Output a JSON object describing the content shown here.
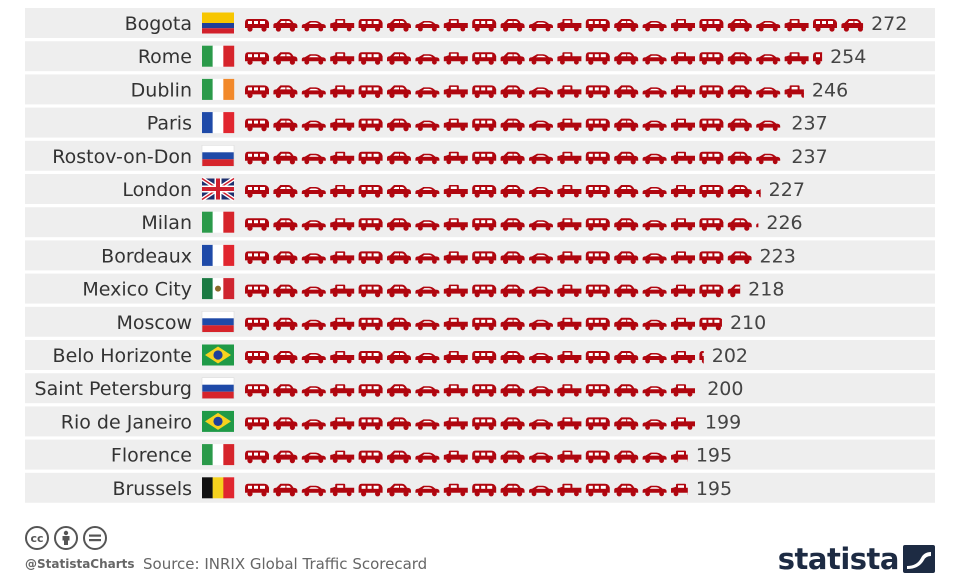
{
  "chart_data": {
    "type": "bar",
    "categories": [
      "Bogota",
      "Rome",
      "Dublin",
      "Paris",
      "Rostov-on-Don",
      "London",
      "Milan",
      "Bordeaux",
      "Mexico City",
      "Moscow",
      "Belo Horizonte",
      "Saint Petersburg",
      "Rio de Janeiro",
      "Florence",
      "Brussels"
    ],
    "values": [
      272,
      254,
      246,
      237,
      237,
      227,
      226,
      223,
      218,
      210,
      202,
      200,
      199,
      195,
      195
    ],
    "flags": [
      "colombia",
      "italy",
      "ireland",
      "france",
      "russia",
      "uk",
      "italy",
      "france",
      "mexico",
      "russia",
      "brazil",
      "russia",
      "brazil",
      "italy",
      "belgium"
    ],
    "mark": "car-icon",
    "bar_color": "#b0060f"
  },
  "footer": {
    "handle": "@StatistaCharts",
    "source": "Source: INRIX Global Traffic Scorecard",
    "logo": "statista",
    "cc_icons": [
      "cc-icon",
      "by-icon",
      "nd-icon"
    ]
  }
}
